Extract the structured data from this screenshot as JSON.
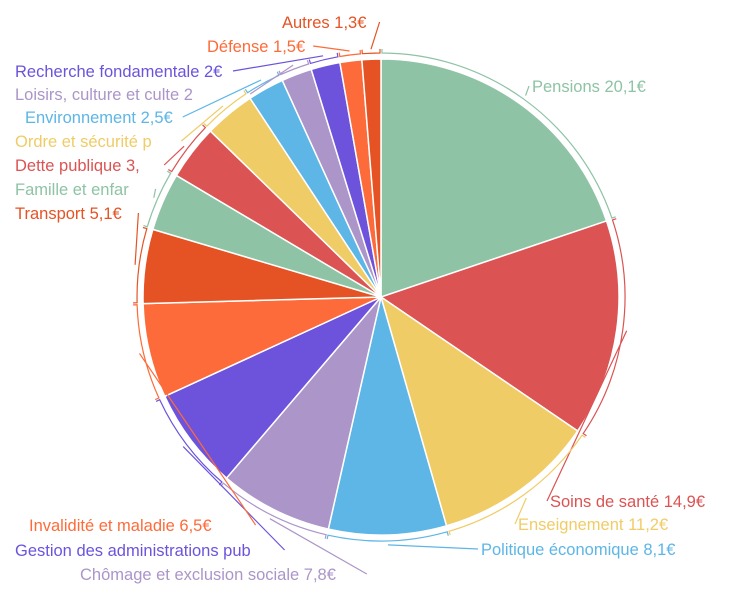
{
  "chart_data": {
    "type": "pie",
    "title": "",
    "unit": "€",
    "slices": [
      {
        "label": "Pensions",
        "value": 20.1,
        "display": "Pensions 20,1€",
        "color": "#8ec3a5"
      },
      {
        "label": "Soins de santé",
        "value": 14.9,
        "display": "Soins de santé 14,9€",
        "color": "#db5353"
      },
      {
        "label": "Enseignement",
        "value": 11.2,
        "display": "Enseignement 11,2€",
        "color": "#f0cc66"
      },
      {
        "label": "Politique économique",
        "value": 8.1,
        "display": "Politique économique 8,1€",
        "color": "#5db6e6"
      },
      {
        "label": "Chômage et exclusion sociale",
        "value": 7.8,
        "display": "Chômage et exclusion sociale 7,8€",
        "color": "#ab95c9"
      },
      {
        "label": "Gestion des administrations pub",
        "value": 7.0,
        "display": "Gestion des administrations pub",
        "color": "#6d53dc"
      },
      {
        "label": "Invalidité et maladie",
        "value": 6.5,
        "display": "Invalidité et maladie 6,5€",
        "color": "#fe6b3a"
      },
      {
        "label": "Transport",
        "value": 5.1,
        "display": "Transport 5,1€",
        "color": "#e55325"
      },
      {
        "label": "Famille et enfar",
        "value": 4.0,
        "display": "Famille et enfar",
        "color": "#8ec3a5"
      },
      {
        "label": "Dette publique",
        "value": 3.8,
        "display": "Dette publique 3,",
        "color": "#db5353"
      },
      {
        "label": "Ordre et sécurité p",
        "value": 3.5,
        "display": "Ordre et sécurité p",
        "color": "#f0cc66"
      },
      {
        "label": "Environnement",
        "value": 2.5,
        "display": "Environnement 2,5€",
        "color": "#5db6e6"
      },
      {
        "label": "Loisirs, culture et culte",
        "value": 2.1,
        "display": "Loisirs, culture et culte 2",
        "color": "#ab95c9"
      },
      {
        "label": "Recherche fondamentale",
        "value": 2.0,
        "display": "Recherche fondamentale 2€",
        "color": "#6d53dc"
      },
      {
        "label": "Défense",
        "value": 1.5,
        "display": "Défense 1,5€",
        "color": "#fe6b3a"
      },
      {
        "label": "Autres",
        "value": 1.3,
        "display": "Autres 1,3€",
        "color": "#e55325"
      }
    ]
  }
}
